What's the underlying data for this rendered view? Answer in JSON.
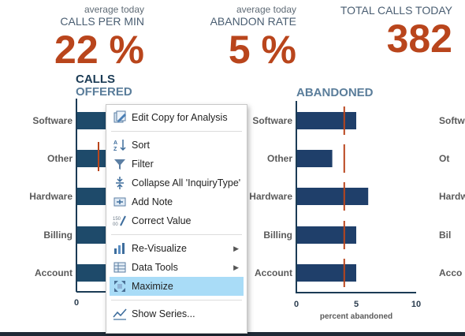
{
  "kpis": [
    {
      "sub": "average today",
      "label": "CALLS PER MIN",
      "value": "22 %"
    },
    {
      "sub": "average today",
      "label": "ABANDON RATE",
      "value": "5 %"
    },
    {
      "sub": "",
      "label": "TOTAL CALLS TODAY",
      "value": "382"
    }
  ],
  "charts": {
    "calls_offered": {
      "title_line1": "CALLS",
      "title_line2": "OFFERED"
    },
    "abandoned": {
      "title": "ABANDONED"
    }
  },
  "chart_data": [
    {
      "type": "bar",
      "orientation": "horizontal",
      "title": "CALLS OFFERED",
      "categories": [
        "Software",
        "Other",
        "Hardware",
        "Billing",
        "Account"
      ],
      "x_tick_labels": [
        "0"
      ],
      "partially_hidden_by_menu": true,
      "bar_color": "#1e4a6a",
      "marker_color": "#b9451c"
    },
    {
      "type": "bar",
      "orientation": "horizontal",
      "title": "ABANDONED",
      "categories": [
        "Software",
        "Other",
        "Hardware",
        "Billing",
        "Account"
      ],
      "values": [
        5,
        3,
        6,
        5,
        5
      ],
      "target_marker": 4,
      "xlim": [
        0,
        10
      ],
      "x_tick_labels": [
        "0",
        "5",
        "10"
      ],
      "xlabel": "percent abandoned",
      "bar_color": "#1f3f6a",
      "marker_color": "#b9451c"
    },
    {
      "type": "bar",
      "orientation": "horizontal",
      "partially_visible": true,
      "categories": [
        "Softw",
        "Ot",
        "Hardw",
        "Bil",
        "Acco"
      ]
    }
  ],
  "context_menu": {
    "items": [
      {
        "label": "Edit Copy for Analysis",
        "icon": "edit-copy-icon"
      },
      {
        "separator": true
      },
      {
        "label": "Sort",
        "icon": "sort-icon"
      },
      {
        "label": "Filter",
        "icon": "filter-icon"
      },
      {
        "label": "Collapse All 'InquiryType'",
        "icon": "collapse-icon"
      },
      {
        "label": "Add Note",
        "icon": "add-note-icon"
      },
      {
        "label": "Correct Value",
        "icon": "correct-value-icon"
      },
      {
        "separator": true
      },
      {
        "label": "Re-Visualize",
        "icon": "revisualize-icon",
        "submenu": true
      },
      {
        "label": "Data Tools",
        "icon": "data-tools-icon",
        "submenu": true
      },
      {
        "label": "Maximize",
        "icon": "maximize-icon",
        "highlighted": true
      },
      {
        "separator": true
      },
      {
        "label": "Show Series...",
        "icon": "show-series-icon"
      }
    ]
  },
  "colors": {
    "accent": "#b9451c",
    "bar": "#1f3f6a",
    "highlight": "#a9dcf7"
  }
}
